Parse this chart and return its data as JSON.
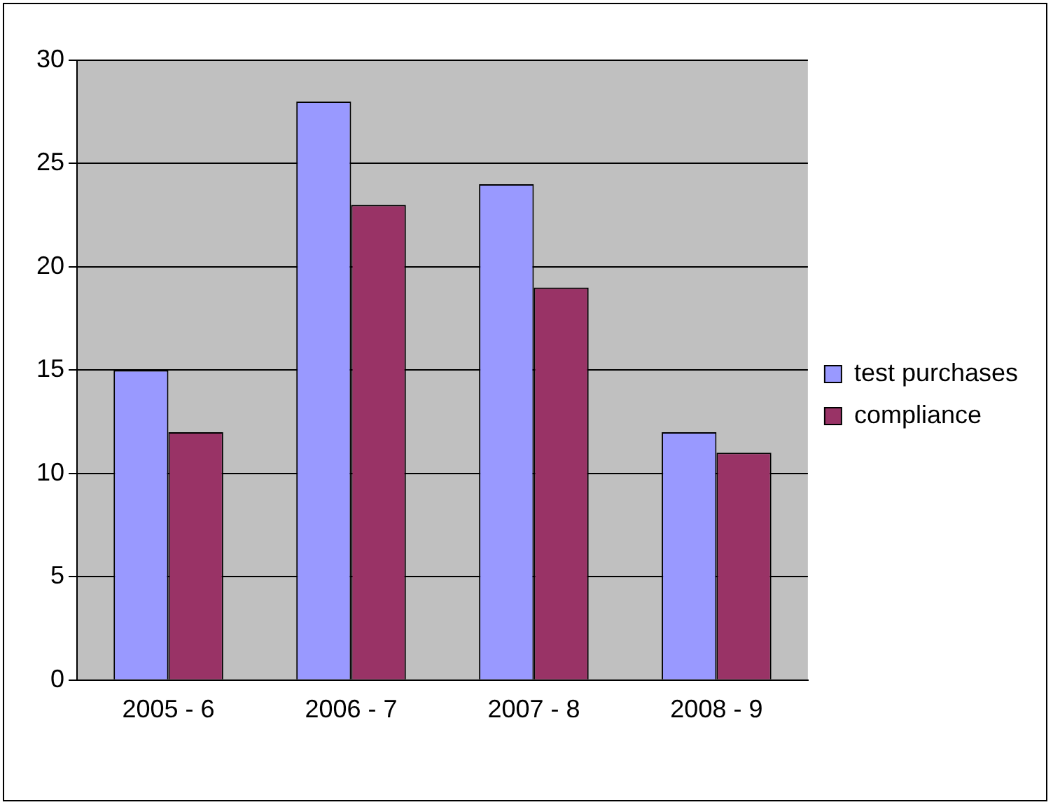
{
  "chart_data": {
    "type": "bar",
    "categories": [
      "2005 - 6",
      "2006 - 7",
      "2007 - 8",
      "2008 - 9"
    ],
    "series": [
      {
        "name": "test purchases",
        "color": "#9999ff",
        "values": [
          15,
          28,
          24,
          12
        ]
      },
      {
        "name": "compliance",
        "color": "#993366",
        "values": [
          12,
          23,
          19,
          11
        ]
      }
    ],
    "ylim": [
      0,
      30
    ],
    "yticks": [
      0,
      5,
      10,
      15,
      20,
      25,
      30
    ],
    "grid": "y",
    "legend": "right"
  }
}
